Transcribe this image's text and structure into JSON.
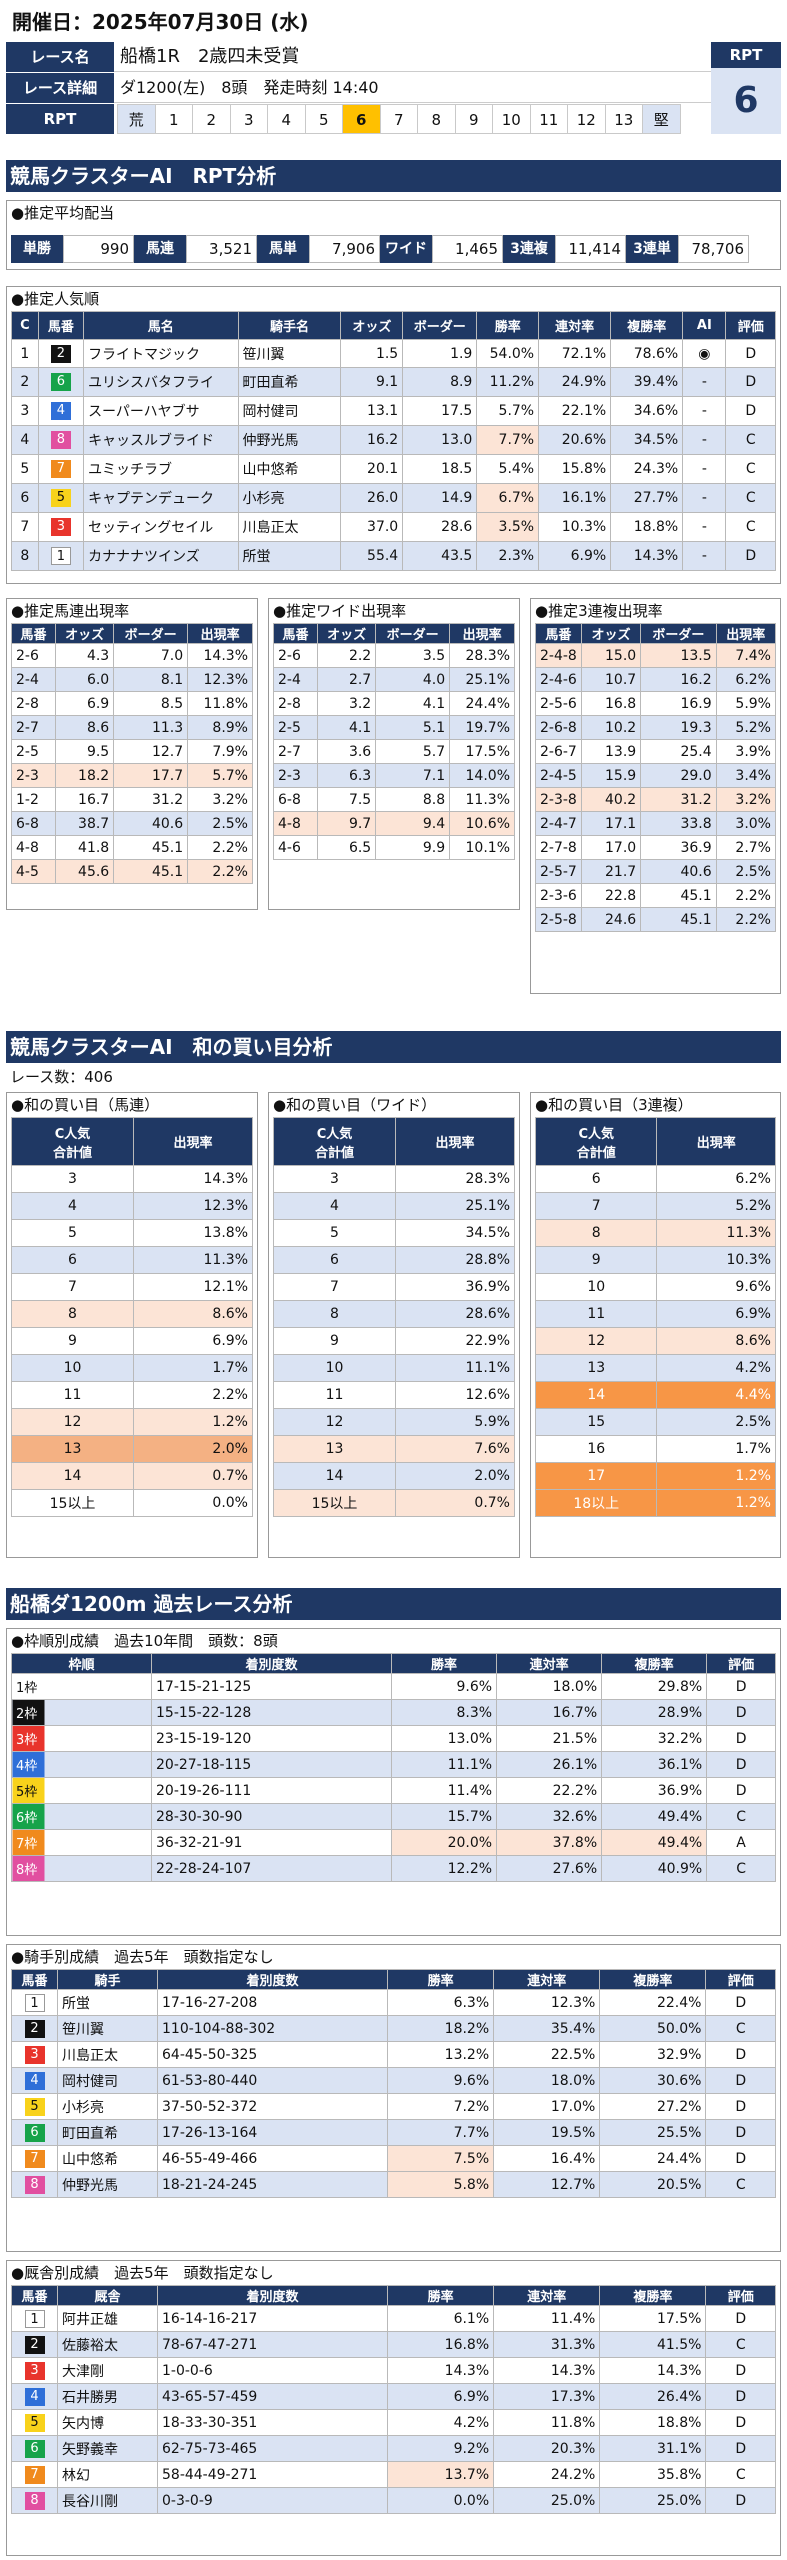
{
  "date_line": "開催日：2025年07月30日 (水)",
  "header": {
    "race_name_label": "レース名",
    "race_name": "船橋1R　2歳四未受賞",
    "detail_label": "レース詳細",
    "detail": "ダ1200(左)　8頭　発走時刻 14:40",
    "rpt_label": "RPT",
    "rpt_big_label": "RPT",
    "rpt_big_value": "6",
    "scale": [
      "荒",
      "1",
      "2",
      "3",
      "4",
      "5",
      "6",
      "7",
      "8",
      "9",
      "10",
      "11",
      "12",
      "13",
      "堅"
    ],
    "scale_active": "6"
  },
  "sec1": "競馬クラスターAI　RPT分析",
  "payout": {
    "title": "●推定平均配当",
    "items": [
      [
        "単勝",
        "990"
      ],
      [
        "馬連",
        "3,521"
      ],
      [
        "馬単",
        "7,906"
      ],
      [
        "ワイド",
        "1,465"
      ],
      [
        "3連複",
        "11,414"
      ],
      [
        "3連単",
        "78,706"
      ]
    ]
  },
  "popular": {
    "title": "●推定人気順",
    "headers": [
      "C",
      "馬番",
      "馬名",
      "騎手名",
      "オッズ",
      "ボーダー",
      "勝率",
      "連対率",
      "複勝率",
      "AI",
      "評価"
    ],
    "rows": [
      [
        "1",
        "2",
        "フライトマジック",
        "笹川翼",
        "1.5",
        "1.9",
        "54.0%",
        "72.1%",
        "78.6%",
        "◉",
        "D"
      ],
      [
        "2",
        "6",
        "ユリシスバタフライ",
        "町田直希",
        "9.1",
        "8.9",
        "11.2%",
        "24.9%",
        "39.4%",
        "-",
        "D"
      ],
      [
        "3",
        "4",
        "スーパーハヤブサ",
        "岡村健司",
        "13.1",
        "17.5",
        "5.7%",
        "22.1%",
        "34.6%",
        "-",
        "D"
      ],
      [
        "4",
        "8",
        "キャッスルブライド",
        "仲野光馬",
        "16.2",
        "13.0",
        "7.7%",
        "20.6%",
        "34.5%",
        "-",
        "C"
      ],
      [
        "5",
        "7",
        "ユミッチラブ",
        "山中悠希",
        "20.1",
        "18.5",
        "5.4%",
        "15.8%",
        "24.3%",
        "-",
        "C"
      ],
      [
        "6",
        "5",
        "キャプテンデューク",
        "小杉亮",
        "26.0",
        "14.9",
        "6.7%",
        "16.1%",
        "27.7%",
        "-",
        "C"
      ],
      [
        "7",
        "3",
        "セッティングセイル",
        "川島正太",
        "37.0",
        "28.6",
        "3.5%",
        "10.3%",
        "18.8%",
        "-",
        "C"
      ],
      [
        "8",
        "1",
        "カナナナツインズ",
        "所蛍",
        "55.4",
        "43.5",
        "2.3%",
        "6.9%",
        "14.3%",
        "-",
        "D"
      ]
    ]
  },
  "umaren": {
    "title": "●推定馬連出現率",
    "headers": [
      "馬番",
      "オッズ",
      "ボーダー",
      "出現率"
    ],
    "rows": [
      [
        "2-6",
        "4.3",
        "7.0",
        "14.3%"
      ],
      [
        "2-4",
        "6.0",
        "8.1",
        "12.3%"
      ],
      [
        "2-8",
        "6.9",
        "8.5",
        "11.8%"
      ],
      [
        "2-7",
        "8.6",
        "11.3",
        "8.9%"
      ],
      [
        "2-5",
        "9.5",
        "12.7",
        "7.9%"
      ],
      [
        "2-3",
        "18.2",
        "17.7",
        "5.7%"
      ],
      [
        "1-2",
        "16.7",
        "31.2",
        "3.2%"
      ],
      [
        "6-8",
        "38.7",
        "40.6",
        "2.5%"
      ],
      [
        "4-8",
        "41.8",
        "45.1",
        "2.2%"
      ],
      [
        "4-5",
        "45.6",
        "45.1",
        "2.2%"
      ]
    ]
  },
  "wide": {
    "title": "●推定ワイド出現率",
    "headers": [
      "馬番",
      "オッズ",
      "ボーダー",
      "出現率"
    ],
    "rows": [
      [
        "2-6",
        "2.2",
        "3.5",
        "28.3%"
      ],
      [
        "2-4",
        "2.7",
        "4.0",
        "25.1%"
      ],
      [
        "2-8",
        "3.2",
        "4.1",
        "24.4%"
      ],
      [
        "2-5",
        "4.1",
        "5.1",
        "19.7%"
      ],
      [
        "2-7",
        "3.6",
        "5.7",
        "17.5%"
      ],
      [
        "2-3",
        "6.3",
        "7.1",
        "14.0%"
      ],
      [
        "6-8",
        "7.5",
        "8.8",
        "11.3%"
      ],
      [
        "4-8",
        "9.7",
        "9.4",
        "10.6%"
      ],
      [
        "4-6",
        "6.5",
        "9.9",
        "10.1%"
      ]
    ]
  },
  "sanren": {
    "title": "●推定3連複出現率",
    "headers": [
      "馬番",
      "オッズ",
      "ボーダー",
      "出現率"
    ],
    "rows": [
      [
        "2-4-8",
        "15.0",
        "13.5",
        "7.4%"
      ],
      [
        "2-4-6",
        "10.7",
        "16.2",
        "6.2%"
      ],
      [
        "2-5-6",
        "16.8",
        "16.9",
        "5.9%"
      ],
      [
        "2-6-8",
        "10.2",
        "19.3",
        "5.2%"
      ],
      [
        "2-6-7",
        "13.9",
        "25.4",
        "3.9%"
      ],
      [
        "2-4-5",
        "15.9",
        "29.0",
        "3.4%"
      ],
      [
        "2-3-8",
        "40.2",
        "31.2",
        "3.2%"
      ],
      [
        "2-4-7",
        "17.1",
        "33.8",
        "3.0%"
      ],
      [
        "2-7-8",
        "17.0",
        "36.9",
        "2.7%"
      ],
      [
        "2-5-7",
        "21.7",
        "40.6",
        "2.5%"
      ],
      [
        "2-3-6",
        "22.8",
        "45.1",
        "2.2%"
      ],
      [
        "2-5-8",
        "24.6",
        "45.1",
        "2.2%"
      ]
    ]
  },
  "sec2": "競馬クラスターAI　和の買い目分析",
  "race_count": "レース数：406",
  "wa_umaren": {
    "title": "●和の買い目（馬連）",
    "h1": "C人気\n合計値",
    "h2": "出現率",
    "rows": [
      [
        "3",
        "14.3%"
      ],
      [
        "4",
        "12.3%"
      ],
      [
        "5",
        "13.8%"
      ],
      [
        "6",
        "11.3%"
      ],
      [
        "7",
        "12.1%"
      ],
      [
        "8",
        "8.6%"
      ],
      [
        "9",
        "6.9%"
      ],
      [
        "10",
        "1.7%"
      ],
      [
        "11",
        "2.2%"
      ],
      [
        "12",
        "1.2%"
      ],
      [
        "13",
        "2.0%"
      ],
      [
        "14",
        "0.7%"
      ],
      [
        "15以上",
        "0.0%"
      ]
    ]
  },
  "wa_wide": {
    "title": "●和の買い目（ワイド）",
    "h1": "C人気\n合計値",
    "h2": "出現率",
    "rows": [
      [
        "3",
        "28.3%"
      ],
      [
        "4",
        "25.1%"
      ],
      [
        "5",
        "34.5%"
      ],
      [
        "6",
        "28.8%"
      ],
      [
        "7",
        "36.9%"
      ],
      [
        "8",
        "28.6%"
      ],
      [
        "9",
        "22.9%"
      ],
      [
        "10",
        "11.1%"
      ],
      [
        "11",
        "12.6%"
      ],
      [
        "12",
        "5.9%"
      ],
      [
        "13",
        "7.6%"
      ],
      [
        "14",
        "2.0%"
      ],
      [
        "15以上",
        "0.7%"
      ]
    ]
  },
  "wa_sanren": {
    "title": "●和の買い目（3連複）",
    "h1": "C人気\n合計値",
    "h2": "出現率",
    "rows": [
      [
        "6",
        "6.2%"
      ],
      [
        "7",
        "5.2%"
      ],
      [
        "8",
        "11.3%"
      ],
      [
        "9",
        "10.3%"
      ],
      [
        "10",
        "9.6%"
      ],
      [
        "11",
        "6.9%"
      ],
      [
        "12",
        "8.6%"
      ],
      [
        "13",
        "4.2%"
      ],
      [
        "14",
        "4.4%"
      ],
      [
        "15",
        "2.5%"
      ],
      [
        "16",
        "1.7%"
      ],
      [
        "17",
        "1.2%"
      ],
      [
        "18以上",
        "1.2%"
      ]
    ]
  },
  "sec3": "船橋ダ1200m 過去レース分析",
  "waku": {
    "title": "●枠順別成績　過去10年間　頭数：8頭",
    "headers": [
      "枠順",
      "着別度数",
      "勝率",
      "連対率",
      "複勝率",
      "評価"
    ],
    "rows": [
      [
        "1枠",
        "17-15-21-125",
        "9.6%",
        "18.0%",
        "29.8%",
        "D"
      ],
      [
        "2枠",
        "15-15-22-128",
        "8.3%",
        "16.7%",
        "28.9%",
        "D"
      ],
      [
        "3枠",
        "23-15-19-120",
        "13.0%",
        "21.5%",
        "32.2%",
        "D"
      ],
      [
        "4枠",
        "20-27-18-115",
        "11.1%",
        "26.1%",
        "36.1%",
        "D"
      ],
      [
        "5枠",
        "20-19-26-111",
        "11.4%",
        "22.2%",
        "36.9%",
        "D"
      ],
      [
        "6枠",
        "28-30-30-90",
        "15.7%",
        "32.6%",
        "49.4%",
        "C"
      ],
      [
        "7枠",
        "36-32-21-91",
        "20.0%",
        "37.8%",
        "49.4%",
        "A"
      ],
      [
        "8枠",
        "22-28-24-107",
        "12.2%",
        "27.6%",
        "40.9%",
        "C"
      ]
    ]
  },
  "jockey": {
    "title": "●騎手別成績　過去5年　頭数指定なし",
    "headers": [
      "馬番",
      "騎手",
      "着別度数",
      "勝率",
      "連対率",
      "複勝率",
      "評価"
    ],
    "rows": [
      [
        "1",
        "所蛍",
        "17-16-27-208",
        "6.3%",
        "12.3%",
        "22.4%",
        "D"
      ],
      [
        "2",
        "笹川翼",
        "110-104-88-302",
        "18.2%",
        "35.4%",
        "50.0%",
        "C"
      ],
      [
        "3",
        "川島正太",
        "64-45-50-325",
        "13.2%",
        "22.5%",
        "32.9%",
        "D"
      ],
      [
        "4",
        "岡村健司",
        "61-53-80-440",
        "9.6%",
        "18.0%",
        "30.6%",
        "D"
      ],
      [
        "5",
        "小杉亮",
        "37-50-52-372",
        "7.2%",
        "17.0%",
        "27.2%",
        "D"
      ],
      [
        "6",
        "町田直希",
        "17-26-13-164",
        "7.7%",
        "19.5%",
        "25.5%",
        "D"
      ],
      [
        "7",
        "山中悠希",
        "46-55-49-466",
        "7.5%",
        "16.4%",
        "24.4%",
        "D"
      ],
      [
        "8",
        "仲野光馬",
        "18-21-24-245",
        "5.8%",
        "12.7%",
        "20.5%",
        "C"
      ]
    ]
  },
  "trainer": {
    "title": "●厩舎別成績　過去5年　頭数指定なし",
    "headers": [
      "馬番",
      "厩舎",
      "着別度数",
      "勝率",
      "連対率",
      "複勝率",
      "評価"
    ],
    "rows": [
      [
        "1",
        "阿井正雄",
        "16-14-16-217",
        "6.1%",
        "11.4%",
        "17.5%",
        "D"
      ],
      [
        "2",
        "佐藤裕太",
        "78-67-47-271",
        "16.8%",
        "31.3%",
        "41.5%",
        "C"
      ],
      [
        "3",
        "大津剛",
        "1-0-0-6",
        "14.3%",
        "14.3%",
        "14.3%",
        "D"
      ],
      [
        "4",
        "石井勝男",
        "43-65-57-459",
        "6.9%",
        "17.3%",
        "26.4%",
        "D"
      ],
      [
        "5",
        "矢内博",
        "18-33-30-351",
        "4.2%",
        "11.8%",
        "18.8%",
        "D"
      ],
      [
        "6",
        "矢野義幸",
        "62-75-73-465",
        "9.2%",
        "20.3%",
        "31.1%",
        "D"
      ],
      [
        "7",
        "林幻",
        "58-44-49-271",
        "13.7%",
        "24.2%",
        "35.8%",
        "C"
      ],
      [
        "8",
        "長谷川剛",
        "0-3-0-9",
        "0.0%",
        "25.0%",
        "25.0%",
        "D"
      ]
    ]
  },
  "colors": {
    "navy": "#1f3864",
    "light": "#dae3f3",
    "pink": "#fce4d6",
    "orange": "#f4b183",
    "deep_orange": "#f79646",
    "active_rpt": "#ffc000"
  }
}
